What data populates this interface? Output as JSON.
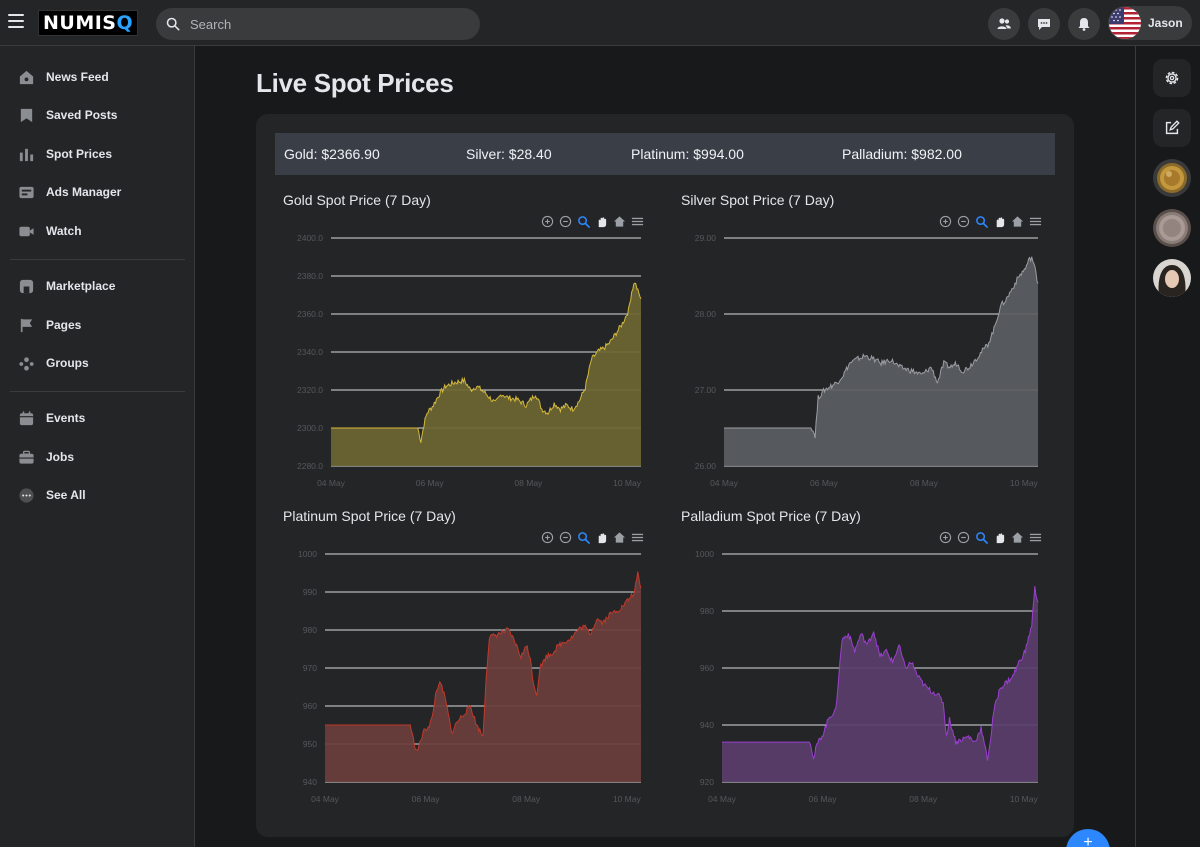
{
  "app": {
    "logo_main": "NUMIS",
    "logo_accent": "Q",
    "search_placeholder": "Search",
    "user_name": "Jason"
  },
  "header_icons": [
    "friends-icon",
    "messages-icon",
    "notifications-icon"
  ],
  "sidebar": {
    "items": [
      {
        "label": "News Feed",
        "icon": "home-icon"
      },
      {
        "label": "Saved Posts",
        "icon": "bookmark-icon"
      },
      {
        "label": "Spot Prices",
        "icon": "bar-chart-icon"
      },
      {
        "label": "Ads Manager",
        "icon": "ads-icon"
      },
      {
        "label": "Watch",
        "icon": "video-icon"
      },
      {
        "label": "Marketplace",
        "icon": "store-icon"
      },
      {
        "label": "Pages",
        "icon": "flag-icon"
      },
      {
        "label": "Groups",
        "icon": "groups-icon"
      },
      {
        "label": "Events",
        "icon": "calendar-icon"
      },
      {
        "label": "Jobs",
        "icon": "briefcase-icon"
      },
      {
        "label": "See All",
        "icon": "more-icon"
      }
    ]
  },
  "main": {
    "title": "Live Spot Prices",
    "ticker": [
      {
        "label": "Gold: $2366.90"
      },
      {
        "label": "Silver: $28.40"
      },
      {
        "label": "Platinum: $994.00"
      },
      {
        "label": "Palladium: $982.00"
      }
    ]
  },
  "chart_data": [
    {
      "type": "area",
      "title": "Gold Spot Price (7 Day)",
      "color": "#d4b93a",
      "fill": "#6e6532",
      "ylim": [
        2280,
        2400
      ],
      "yticks": [
        "2400.0",
        "2380.0",
        "2360.0",
        "2340.0",
        "2320.0",
        "2300.0",
        "2280.0"
      ],
      "xticks": [
        "04 May",
        "06 May",
        "08 May",
        "10 May"
      ],
      "x": [
        0,
        0.28,
        0.29,
        0.3,
        0.31,
        0.33,
        0.35,
        0.37,
        0.4,
        0.43,
        0.45,
        0.47,
        0.5,
        0.53,
        0.55,
        0.57,
        0.6,
        0.63,
        0.66,
        0.68,
        0.7,
        0.72,
        0.74,
        0.76,
        0.78,
        0.8,
        0.82,
        0.84,
        0.86,
        0.88,
        0.9,
        0.92,
        0.94,
        0.96,
        0.97,
        0.98,
        0.99,
        1.0
      ],
      "values": [
        2300,
        2300,
        2293,
        2302,
        2308,
        2312,
        2318,
        2322,
        2324,
        2325,
        2320,
        2322,
        2318,
        2313,
        2318,
        2316,
        2315,
        2312,
        2318,
        2310,
        2308,
        2313,
        2310,
        2312,
        2310,
        2314,
        2321,
        2336,
        2340,
        2342,
        2345,
        2350,
        2355,
        2362,
        2372,
        2377,
        2372,
        2368
      ]
    },
    {
      "type": "area",
      "title": "Silver Spot Price (7 Day)",
      "color": "#9b9da3",
      "fill": "#5b5d62",
      "ylim": [
        26.0,
        29.0
      ],
      "yticks": [
        "29.00",
        "28.00",
        "27.00",
        "26.00"
      ],
      "xticks": [
        "04 May",
        "06 May",
        "08 May",
        "10 May"
      ],
      "x": [
        0,
        0.28,
        0.29,
        0.3,
        0.32,
        0.34,
        0.36,
        0.38,
        0.4,
        0.42,
        0.45,
        0.48,
        0.5,
        0.53,
        0.56,
        0.6,
        0.63,
        0.66,
        0.68,
        0.7,
        0.72,
        0.74,
        0.76,
        0.78,
        0.8,
        0.82,
        0.84,
        0.86,
        0.88,
        0.9,
        0.92,
        0.94,
        0.96,
        0.97,
        0.98,
        0.99,
        1.0
      ],
      "values": [
        26.5,
        26.5,
        26.4,
        26.9,
        27.0,
        27.05,
        27.1,
        27.2,
        27.35,
        27.4,
        27.45,
        27.4,
        27.35,
        27.4,
        27.3,
        27.25,
        27.2,
        27.3,
        27.1,
        27.35,
        27.3,
        27.35,
        27.25,
        27.3,
        27.4,
        27.5,
        27.6,
        27.8,
        28.1,
        28.2,
        28.35,
        28.5,
        28.6,
        28.7,
        28.75,
        28.6,
        28.4
      ]
    },
    {
      "type": "area",
      "title": "Platinum Spot Price (7 Day)",
      "color": "#c0392b",
      "fill": "#6b3e3b",
      "ylim": [
        940,
        1000
      ],
      "yticks": [
        "1000",
        "990",
        "980",
        "970",
        "960",
        "950",
        "940"
      ],
      "xticks": [
        "04 May",
        "06 May",
        "08 May",
        "10 May"
      ],
      "x": [
        0,
        0.27,
        0.28,
        0.29,
        0.3,
        0.31,
        0.33,
        0.34,
        0.35,
        0.36,
        0.37,
        0.38,
        0.39,
        0.4,
        0.42,
        0.44,
        0.46,
        0.48,
        0.5,
        0.51,
        0.52,
        0.55,
        0.58,
        0.6,
        0.62,
        0.64,
        0.65,
        0.66,
        0.67,
        0.68,
        0.7,
        0.72,
        0.74,
        0.76,
        0.78,
        0.8,
        0.82,
        0.84,
        0.86,
        0.88,
        0.9,
        0.92,
        0.94,
        0.96,
        0.98,
        0.99,
        1.0
      ],
      "values": [
        955,
        955,
        951,
        948,
        950,
        953,
        955,
        957,
        963,
        966,
        965,
        962,
        958,
        953,
        956,
        958,
        960,
        955,
        952,
        968,
        978,
        979,
        980,
        977,
        973,
        976,
        972,
        966,
        963,
        970,
        973,
        974,
        976,
        977,
        978,
        980,
        981,
        979,
        983,
        982,
        984,
        985,
        986,
        988,
        990,
        995,
        991
      ]
    },
    {
      "type": "area",
      "title": "Palladium Spot Price (7 Day)",
      "color": "#9b3fd1",
      "fill": "#5a3d6b",
      "ylim": [
        920,
        1000
      ],
      "yticks": [
        "1000",
        "980",
        "960",
        "940",
        "920"
      ],
      "xticks": [
        "04 May",
        "06 May",
        "08 May",
        "10 May"
      ],
      "x": [
        0,
        0.28,
        0.29,
        0.3,
        0.32,
        0.34,
        0.36,
        0.37,
        0.38,
        0.4,
        0.42,
        0.44,
        0.46,
        0.48,
        0.5,
        0.52,
        0.54,
        0.56,
        0.58,
        0.6,
        0.62,
        0.64,
        0.66,
        0.68,
        0.7,
        0.71,
        0.72,
        0.74,
        0.76,
        0.78,
        0.8,
        0.82,
        0.84,
        0.85,
        0.86,
        0.88,
        0.9,
        0.92,
        0.94,
        0.96,
        0.98,
        0.99,
        1.0
      ],
      "values": [
        934,
        934,
        928,
        933,
        937,
        943,
        945,
        958,
        970,
        972,
        966,
        972,
        968,
        973,
        964,
        966,
        962,
        968,
        960,
        962,
        957,
        954,
        952,
        951,
        948,
        936,
        942,
        934,
        935,
        936,
        934,
        939,
        928,
        935,
        945,
        953,
        955,
        957,
        962,
        966,
        975,
        988,
        983
      ]
    }
  ],
  "rightrail": {
    "buttons": [
      "settings-icon",
      "compose-icon"
    ],
    "avatars": [
      "avatar-gold-coin",
      "avatar-silver-coin",
      "avatar-user"
    ]
  }
}
